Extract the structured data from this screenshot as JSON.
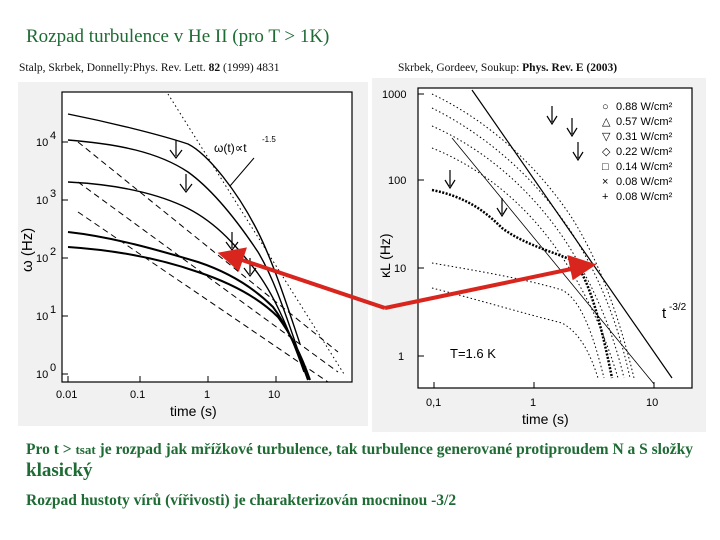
{
  "slide": {
    "title": "Rozpad  turbulence v He II (pro T > 1K)"
  },
  "references": {
    "left": {
      "authors": "Stalp, Skrbek, Donnelly:Phys. Rev. Lett. ",
      "volume": "82",
      "rest": " (1999) 4831"
    },
    "right": {
      "authors": "Skrbek, Gordeev, Soukup: ",
      "journal": "Phys. Rev. E (2003)"
    }
  },
  "text": {
    "line1_a": "Pro t > ",
    "line1_tsat": "tsat",
    "line1_b": " je rozpad jak mřížkové turbulence, tak turbulence generované protiproudem N a S složky ",
    "line1_klasicky": "klasický",
    "line2": "Rozpad hustoty vírů (vířivosti) je charakterizován mocninou -3/2"
  },
  "left_chart": {
    "ylabel": "ω (Hz)",
    "xlabel": "time (s)",
    "annotation": "ω(t)∝t",
    "annotation_exp": "-1.5",
    "x_ticks": [
      "0.01",
      "0.1",
      "1",
      "10"
    ],
    "y_ticks": [
      {
        "base": "10",
        "exp": "0"
      },
      {
        "base": "10",
        "exp": "1"
      },
      {
        "base": "10",
        "exp": "2"
      },
      {
        "base": "10",
        "exp": "3"
      },
      {
        "base": "10",
        "exp": "4"
      }
    ]
  },
  "right_chart": {
    "ylabel": "κL (Hz)",
    "xlabel": "time (s)",
    "temperature": "T=1.6 K",
    "slope_label": "t",
    "slope_exp": "-3/2",
    "x_ticks": [
      "0,1",
      "1",
      "10"
    ],
    "y_ticks": [
      "1",
      "10",
      "100",
      "1000"
    ],
    "legend": [
      {
        "marker": "○",
        "label": "0.88 W/cm²"
      },
      {
        "marker": "△",
        "label": "0.57 W/cm²"
      },
      {
        "marker": "▽",
        "label": "0.31 W/cm²"
      },
      {
        "marker": "◇",
        "label": "0.22 W/cm²"
      },
      {
        "marker": "□",
        "label": "0.14 W/cm²"
      },
      {
        "marker": "×",
        "label": "0.08 W/cm²"
      },
      {
        "marker": "+",
        "label": "0.08 W/cm²"
      }
    ]
  },
  "colors": {
    "title": "#1e6b34",
    "arrow": "#d8261f"
  }
}
